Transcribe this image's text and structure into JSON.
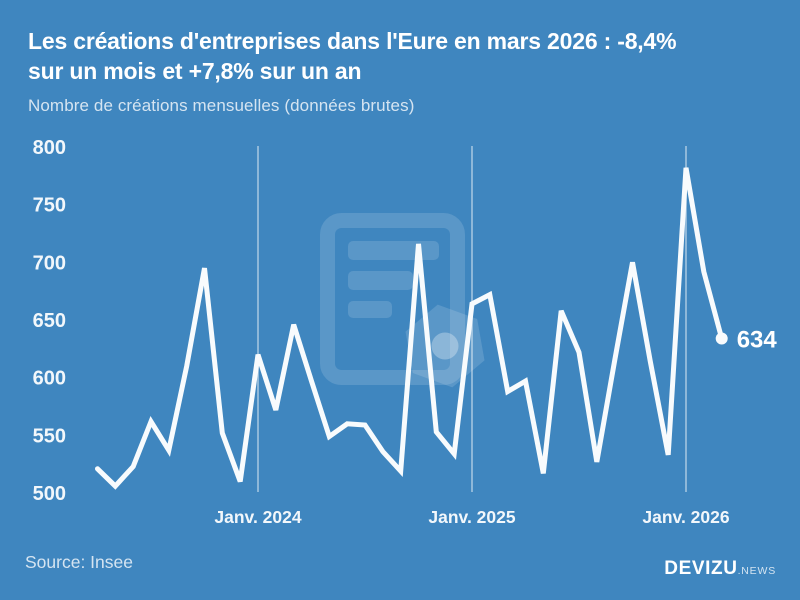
{
  "header": {
    "title_line1": "Les créations d'entreprises dans l'Eure en mars 2026 : -8,4%",
    "title_line2": "sur un mois et +7,8% sur un an",
    "subtitle": "Nombre de créations mensuelles (données brutes)"
  },
  "footer": {
    "source": "Source: Insee",
    "brand": "DEVIZU",
    "brand_suffix": ".NEWS"
  },
  "colors": {
    "background": "#3f86bf",
    "line": "#f8fbfd",
    "text": "#ffffff",
    "muted": "rgba(255,255,255,0.78)",
    "gridline": "rgba(255,255,255,0.55)",
    "watermark": "rgba(255,255,255,0.14)",
    "watermark_strong": "rgba(255,255,255,0.30)",
    "tick_text": "#f2f7fb"
  },
  "chart_data": {
    "type": "line",
    "title": "Les créations d'entreprises dans l'Eure en mars 2026 : -8,4% sur un mois et +7,8% sur un an",
    "subtitle": "Nombre de créations mensuelles (données brutes)",
    "source": "Insee",
    "x": [
      "avr. 2023",
      "mai 2023",
      "juin 2023",
      "juil. 2023",
      "août 2023",
      "sept. 2023",
      "oct. 2023",
      "nov. 2023",
      "déc. 2023",
      "janv. 2024",
      "févr. 2024",
      "mars 2024",
      "avr. 2024",
      "mai 2024",
      "juin 2024",
      "juil. 2024",
      "août 2024",
      "sept. 2024",
      "oct. 2024",
      "nov. 2024",
      "déc. 2024",
      "janv. 2025",
      "févr. 2025",
      "mars 2025",
      "avr. 2025",
      "mai 2025",
      "juin 2025",
      "juil. 2025",
      "août 2025",
      "sept. 2025",
      "oct. 2025",
      "nov. 2025",
      "déc. 2025",
      "janv. 2026",
      "févr. 2026",
      "mars 2026"
    ],
    "values": [
      521,
      506,
      523,
      562,
      537,
      610,
      695,
      552,
      510,
      620,
      572,
      646,
      597,
      549,
      560,
      559,
      536,
      519,
      716,
      553,
      534,
      664,
      672,
      588,
      597,
      517,
      658,
      622,
      527,
      615,
      700,
      614,
      533,
      782,
      692,
      634
    ],
    "ylim": [
      500,
      800
    ],
    "y_ticks": [
      800,
      750,
      700,
      650,
      600,
      550,
      500
    ],
    "x_tick_labels": [
      "Janv. 2024",
      "Janv. 2025",
      "Janv. 2026"
    ],
    "x_tick_month_indices": [
      9,
      21,
      33
    ],
    "grid": "vertical-only",
    "legend": "none",
    "end_label": "634",
    "last_value": 634,
    "change_month_pct": "-8,4%",
    "change_year_pct": "+7,8%"
  }
}
